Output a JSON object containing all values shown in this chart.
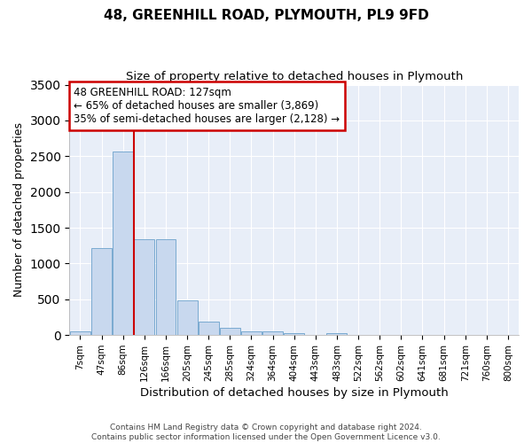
{
  "title1": "48, GREENHILL ROAD, PLYMOUTH, PL9 9FD",
  "title2": "Size of property relative to detached houses in Plymouth",
  "xlabel": "Distribution of detached houses by size in Plymouth",
  "ylabel": "Number of detached properties",
  "bar_labels": [
    "7sqm",
    "47sqm",
    "86sqm",
    "126sqm",
    "166sqm",
    "205sqm",
    "245sqm",
    "285sqm",
    "324sqm",
    "364sqm",
    "404sqm",
    "443sqm",
    "483sqm",
    "522sqm",
    "562sqm",
    "602sqm",
    "641sqm",
    "681sqm",
    "721sqm",
    "760sqm",
    "800sqm"
  ],
  "bar_values": [
    50,
    1220,
    2560,
    1340,
    1340,
    490,
    185,
    100,
    50,
    50,
    30,
    0,
    30,
    0,
    0,
    0,
    0,
    0,
    0,
    0,
    0
  ],
  "bar_color": "#c8d8ee",
  "bar_edge_color": "#7aaad0",
  "annotation_text": "48 GREENHILL ROAD: 127sqm\n← 65% of detached houses are smaller (3,869)\n35% of semi-detached houses are larger (2,128) →",
  "vline_x": 2.5,
  "vline_color": "#cc0000",
  "annotation_box_facecolor": "#ffffff",
  "annotation_box_edgecolor": "#cc0000",
  "plot_bg_color": "#e8eef8",
  "grid_color": "#ffffff",
  "footer_line1": "Contains HM Land Registry data © Crown copyright and database right 2024.",
  "footer_line2": "Contains public sector information licensed under the Open Government Licence v3.0.",
  "ylim": [
    0,
    3500
  ],
  "yticks": [
    0,
    500,
    1000,
    1500,
    2000,
    2500,
    3000,
    3500
  ]
}
